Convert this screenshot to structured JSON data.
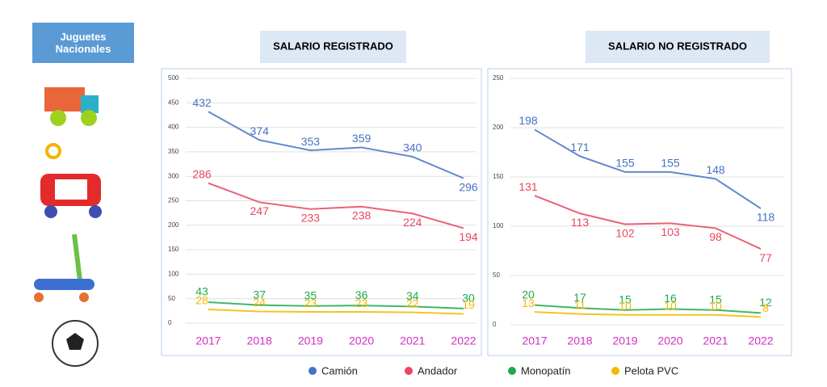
{
  "sidebar": {
    "title": "Juguetes Nacionales"
  },
  "chart_data": [
    {
      "type": "line",
      "title": "SALARIO REGISTRADO",
      "categories": [
        "2017",
        "2018",
        "2019",
        "2020",
        "2021",
        "2022"
      ],
      "ylim": [
        0,
        500
      ],
      "yticks": [
        0,
        50,
        100,
        150,
        200,
        250,
        300,
        350,
        400,
        450,
        500
      ],
      "grid": true,
      "series": [
        {
          "name": "Camión",
          "color": "#4472c4",
          "values": [
            432,
            374,
            353,
            359,
            340,
            296
          ]
        },
        {
          "name": "Andador",
          "color": "#e8475f",
          "values": [
            286,
            247,
            233,
            238,
            224,
            194
          ]
        },
        {
          "name": "Monopatín",
          "color": "#1faa4a",
          "values": [
            43,
            37,
            35,
            36,
            34,
            30
          ]
        },
        {
          "name": "Pelota PVC",
          "color": "#f5b800",
          "values": [
            28,
            24,
            23,
            23,
            22,
            19
          ]
        }
      ]
    },
    {
      "type": "line",
      "title": "SALARIO NO REGISTRADO",
      "categories": [
        "2017",
        "2018",
        "2019",
        "2020",
        "2021",
        "2022"
      ],
      "ylim": [
        0,
        250
      ],
      "yticks": [
        0,
        50,
        100,
        150,
        200,
        250
      ],
      "grid": true,
      "series": [
        {
          "name": "Camión",
          "color": "#4472c4",
          "values": [
            198,
            171,
            155,
            155,
            148,
            118
          ]
        },
        {
          "name": "Andador",
          "color": "#e8475f",
          "values": [
            131,
            113,
            102,
            103,
            98,
            77
          ]
        },
        {
          "name": "Monopatín",
          "color": "#1faa4a",
          "values": [
            20,
            17,
            15,
            16,
            15,
            12
          ]
        },
        {
          "name": "Pelota PVC",
          "color": "#f5b800",
          "values": [
            13,
            11,
            10,
            10,
            10,
            8
          ]
        }
      ]
    }
  ]
}
